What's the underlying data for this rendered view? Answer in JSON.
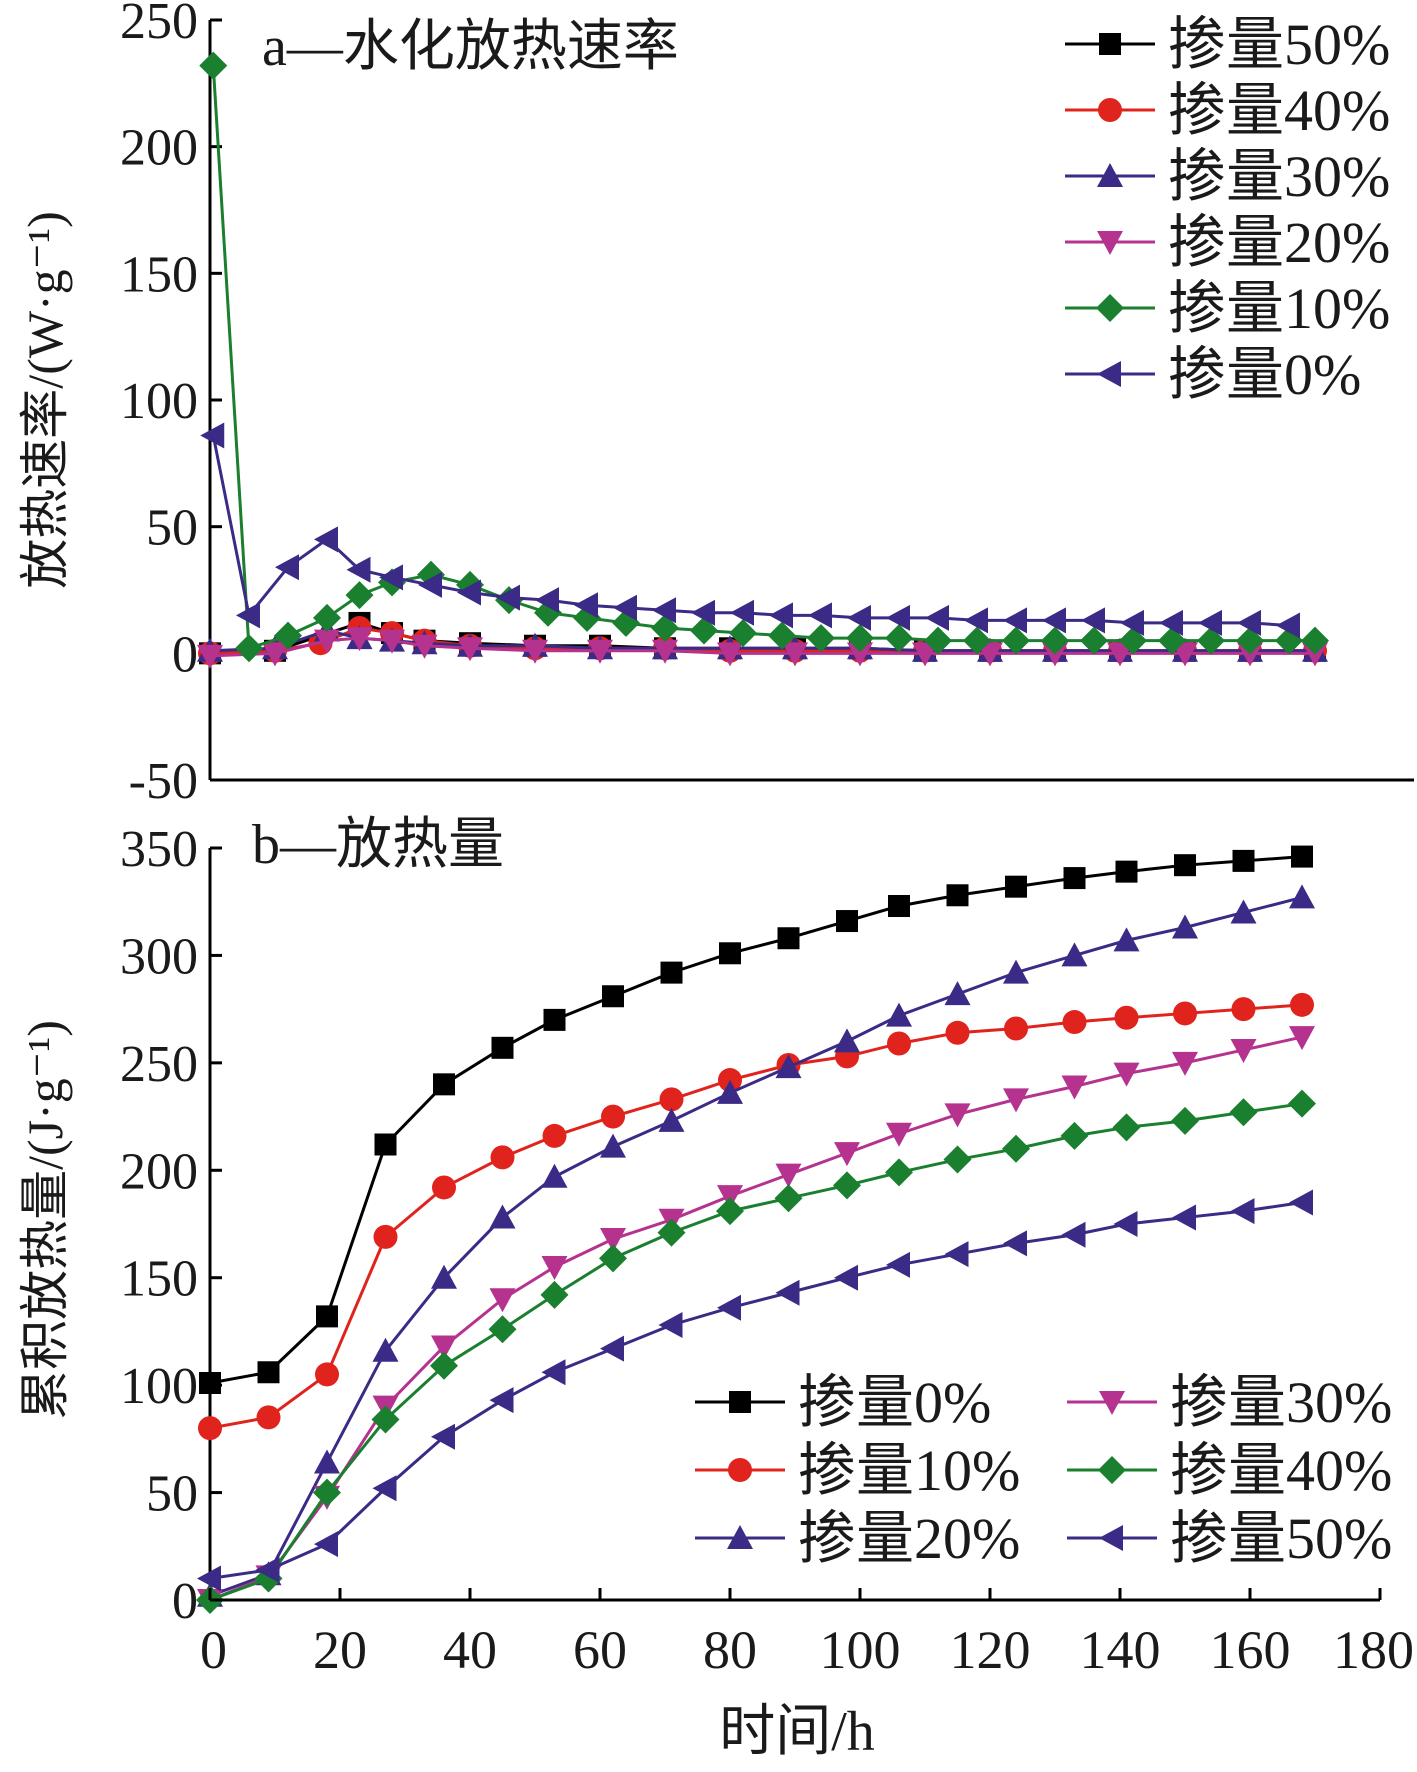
{
  "x_axis": {
    "label": "时间/h",
    "ticks": [
      "0",
      "20",
      "40",
      "60",
      "80",
      "100",
      "120",
      "140",
      "160",
      "180"
    ],
    "range": [
      0,
      180
    ]
  },
  "chart_data": [
    {
      "type": "line",
      "title": "a—水化放热速率",
      "ylabel": "放热速率/(W·g⁻¹)",
      "ylim": [
        -50,
        250
      ],
      "yticks": [
        "250",
        "200",
        "150",
        "100",
        "50",
        "0",
        "-50"
      ],
      "legend_position": "top-right",
      "series": [
        {
          "name": "掺量50%",
          "color": "#000000",
          "marker": "square",
          "x": [
            0,
            10,
            23,
            28,
            33,
            40,
            50,
            60,
            70,
            80,
            90,
            100,
            110,
            120,
            130,
            140,
            150,
            160,
            170
          ],
          "y": [
            0,
            1,
            12,
            8,
            5,
            4,
            3,
            3,
            2,
            2,
            2,
            2,
            1,
            1,
            1,
            1,
            1,
            1,
            1
          ]
        },
        {
          "name": "掺量40%",
          "color": "#e0231c",
          "marker": "circle",
          "x": [
            0,
            10,
            17,
            23,
            28,
            33,
            40,
            50,
            60,
            70,
            80,
            90,
            100,
            110,
            120,
            130,
            140,
            150,
            160,
            170
          ],
          "y": [
            0,
            1,
            4,
            10,
            8,
            5,
            3,
            2,
            2,
            2,
            1,
            1,
            1,
            1,
            1,
            1,
            1,
            1,
            1,
            1
          ]
        },
        {
          "name": "掺量30%",
          "color": "#3b2a86",
          "marker": "triangle-up",
          "x": [
            0,
            10,
            18,
            23,
            28,
            33,
            40,
            50,
            60,
            70,
            80,
            90,
            100,
            110,
            120,
            130,
            140,
            150,
            160,
            170
          ],
          "y": [
            1,
            2,
            9,
            6,
            5,
            4,
            3,
            3,
            2,
            2,
            2,
            2,
            2,
            1,
            1,
            1,
            1,
            1,
            1,
            1
          ]
        },
        {
          "name": "掺量20%",
          "color": "#b5338f",
          "marker": "triangle-down",
          "x": [
            0,
            10,
            18,
            23,
            28,
            33,
            40,
            50,
            60,
            70,
            80,
            90,
            100,
            110,
            120,
            130,
            140,
            150,
            160,
            170
          ],
          "y": [
            -1,
            0,
            5,
            6,
            5,
            3,
            2,
            1,
            1,
            1,
            0,
            0,
            0,
            0,
            0,
            0,
            0,
            0,
            0,
            0
          ]
        },
        {
          "name": "掺量10%",
          "color": "#1a7f2e",
          "marker": "diamond",
          "x": [
            0.5,
            6,
            12,
            18,
            23,
            28,
            34,
            40,
            46,
            52,
            58,
            64,
            70,
            76,
            82,
            88,
            94,
            100,
            106,
            112,
            118,
            124,
            130,
            136,
            142,
            148,
            154,
            160,
            166,
            170
          ],
          "y": [
            232,
            2,
            7,
            14,
            23,
            28,
            31,
            27,
            21,
            16,
            14,
            12,
            10,
            9,
            8,
            7,
            6,
            6,
            6,
            5,
            5,
            5,
            5,
            5,
            5,
            5,
            5,
            5,
            5,
            5
          ]
        },
        {
          "name": "掺量0%",
          "color": "#3b2a86",
          "marker": "triangle-left",
          "x": [
            0.5,
            6,
            12,
            18,
            23,
            28,
            34,
            40,
            46,
            52,
            58,
            64,
            70,
            76,
            82,
            88,
            94,
            100,
            106,
            112,
            118,
            124,
            130,
            136,
            142,
            148,
            154,
            160,
            166
          ],
          "y": [
            86,
            15,
            34,
            45,
            33,
            30,
            27,
            24,
            22,
            21,
            19,
            18,
            17,
            16,
            16,
            15,
            15,
            14,
            14,
            14,
            13,
            13,
            13,
            13,
            12,
            12,
            12,
            12,
            11
          ]
        }
      ]
    },
    {
      "type": "line",
      "title": "b—放热量",
      "ylabel": "累积放热量/(J·g⁻¹)",
      "ylim": [
        0,
        350
      ],
      "yticks": [
        "350",
        "300",
        "250",
        "200",
        "150",
        "100",
        "50",
        "0"
      ],
      "legend_position": "bottom-right",
      "series": [
        {
          "name": "掺量0%",
          "color": "#000000",
          "marker": "square",
          "x": [
            0,
            9,
            18,
            27,
            36,
            45,
            53,
            62,
            71,
            80,
            89,
            98,
            106,
            115,
            124,
            133,
            141,
            150,
            159,
            168
          ],
          "y": [
            101,
            106,
            132,
            212,
            240,
            257,
            270,
            281,
            292,
            301,
            308,
            316,
            323,
            328,
            332,
            336,
            339,
            342,
            344,
            346
          ]
        },
        {
          "name": "掺量10%",
          "color": "#e0231c",
          "marker": "circle",
          "x": [
            0,
            9,
            18,
            27,
            36,
            45,
            53,
            62,
            71,
            80,
            89,
            98,
            106,
            115,
            124,
            133,
            141,
            150,
            159,
            168
          ],
          "y": [
            80,
            85,
            105,
            169,
            192,
            206,
            216,
            225,
            233,
            242,
            249,
            253,
            259,
            264,
            266,
            269,
            271,
            273,
            275,
            277
          ]
        },
        {
          "name": "掺量20%",
          "color": "#3b2a86",
          "marker": "triangle-up",
          "x": [
            0,
            9,
            18,
            27,
            36,
            45,
            53,
            62,
            71,
            80,
            89,
            98,
            106,
            115,
            124,
            133,
            141,
            150,
            159,
            168
          ],
          "y": [
            2,
            12,
            64,
            116,
            150,
            178,
            197,
            211,
            223,
            236,
            248,
            260,
            272,
            282,
            292,
            300,
            307,
            313,
            320,
            327
          ]
        },
        {
          "name": "掺量30%",
          "color": "#b5338f",
          "marker": "triangle-down",
          "x": [
            0,
            9,
            18,
            27,
            36,
            45,
            53,
            62,
            71,
            80,
            89,
            98,
            106,
            115,
            124,
            133,
            141,
            150,
            159,
            168
          ],
          "y": [
            0,
            11,
            48,
            90,
            118,
            140,
            155,
            168,
            177,
            188,
            198,
            208,
            217,
            226,
            233,
            239,
            245,
            250,
            256,
            262
          ]
        },
        {
          "name": "掺量40%",
          "color": "#1a7f2e",
          "marker": "diamond",
          "x": [
            0,
            9,
            18,
            27,
            36,
            45,
            53,
            62,
            71,
            80,
            89,
            98,
            106,
            115,
            124,
            133,
            141,
            150,
            159,
            168
          ],
          "y": [
            0,
            10,
            50,
            84,
            109,
            126,
            142,
            159,
            171,
            181,
            187,
            193,
            199,
            205,
            210,
            216,
            220,
            223,
            227,
            231
          ]
        },
        {
          "name": "掺量50%",
          "color": "#3b2a86",
          "marker": "triangle-left",
          "x": [
            0,
            9,
            18,
            27,
            36,
            45,
            53,
            62,
            71,
            80,
            89,
            98,
            106,
            115,
            124,
            133,
            141,
            150,
            159,
            168
          ],
          "y": [
            10,
            14,
            26,
            52,
            76,
            93,
            106,
            117,
            128,
            136,
            143,
            150,
            156,
            161,
            166,
            170,
            175,
            178,
            181,
            185
          ]
        }
      ]
    }
  ]
}
